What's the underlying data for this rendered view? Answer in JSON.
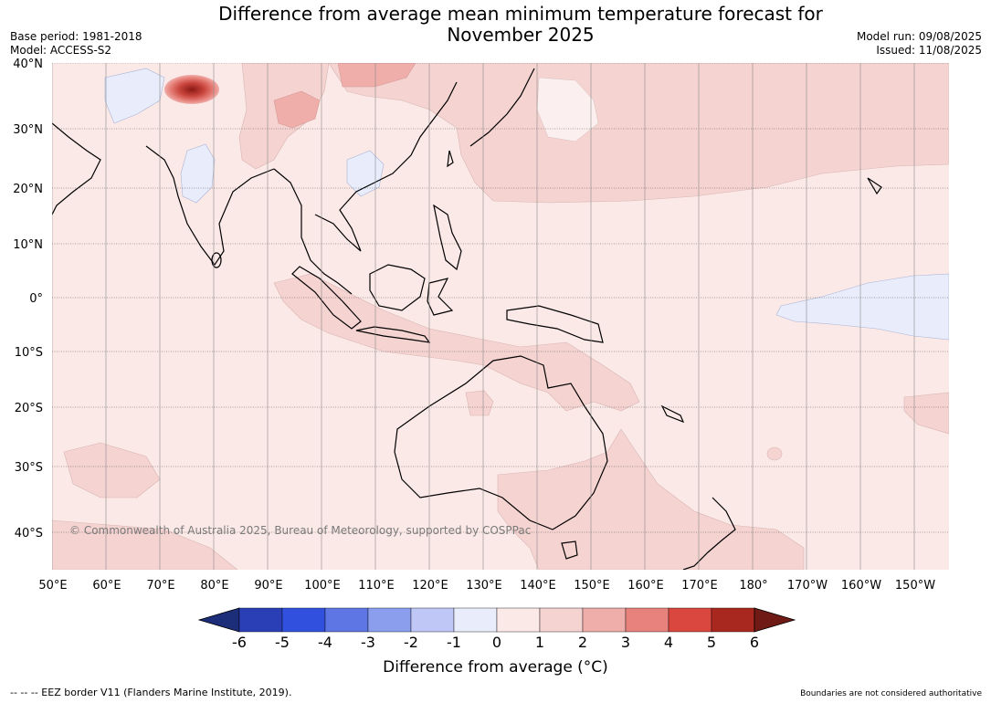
{
  "title_line1": "Difference from average mean minimum temperature forecast for",
  "title_line2": "November 2025",
  "base_period": "Base period: 1981-2018",
  "model": "Model: ACCESS-S2",
  "model_run": "Model run: 09/08/2025",
  "issued": "Issued: 11/08/2025",
  "copyright": "© Commonwealth of Australia 2025, Bureau of Meteorology, supported by COSPPac",
  "eez_note": "--  --  -- EEZ border V11 (Flanders Marine Institute, 2019).",
  "boundaries_note": "Boundaries are not considered authoritative",
  "lat_labels": [
    "40°N",
    "30°N",
    "20°N",
    "10°N",
    "0°",
    "10°S",
    "20°S",
    "30°S",
    "40°S"
  ],
  "lon_labels": [
    "50°E",
    "60°E",
    "70°E",
    "80°E",
    "90°E",
    "100°E",
    "110°E",
    "120°E",
    "130°E",
    "140°E",
    "150°E",
    "160°E",
    "170°E",
    "180°",
    "170°W",
    "160°W",
    "150°W"
  ],
  "colorbar": {
    "label": "Difference from average (°C)",
    "ticks": [
      "-6",
      "-5",
      "-4",
      "-3",
      "-2",
      "-1",
      "0",
      "1",
      "2",
      "3",
      "4",
      "5",
      "6"
    ],
    "colors": [
      "#1c2d7a",
      "#2a3eb6",
      "#3150de",
      "#5d76e4",
      "#8b9ded",
      "#bec7f5",
      "#e8ecfb",
      "#fbe9e7",
      "#f5d3d1",
      "#efaeaa",
      "#e7837c",
      "#d9473e",
      "#a8281f",
      "#6f1a14"
    ]
  }
}
